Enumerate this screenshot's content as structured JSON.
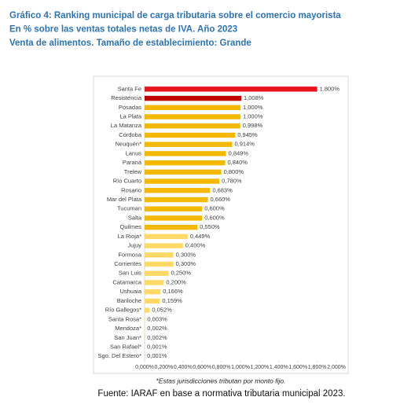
{
  "chart_data": {
    "type": "hbar",
    "title_lines": [
      "Gráfico 4: Ranking municipal de carga tributaria sobre el comercio mayorista",
      "En % sobre las ventas totales netas de IVA. Año 2023",
      "Venta de alimentos. Tamaño de establecimiento: Grande"
    ],
    "categories": [
      "Santa Fe",
      "Resistencia",
      "Posadas",
      "La Plata",
      "La Matanza",
      "Córdoba",
      "Neuquén*",
      "Lanus",
      "Paraná",
      "Trelew",
      "Río Cuarto",
      "Rosario",
      "Mar del Plata",
      "Tucuman",
      "Salta",
      "Quilmes",
      "La Rioja*",
      "Jujuy",
      "Formosa",
      "Corrientes",
      "San Luis",
      "Catamarca",
      "Ushuaia",
      "Bariloche",
      "Río Gallegos*",
      "Santa Rosa*",
      "Mendoza*",
      "San Juan*",
      "San Rafael*",
      "Sgo. Del Estero*"
    ],
    "values": [
      1.8,
      1.008,
      1.0,
      1.0,
      0.998,
      0.945,
      0.914,
      0.849,
      0.84,
      0.8,
      0.78,
      0.683,
      0.66,
      0.6,
      0.6,
      0.55,
      0.449,
      0.4,
      0.3,
      0.3,
      0.25,
      0.2,
      0.166,
      0.159,
      0.052,
      0.003,
      0.002,
      0.002,
      0.001,
      0.001
    ],
    "value_labels": [
      "1,800%",
      "1,008%",
      "1,000%",
      "1,000%",
      "0,998%",
      "0,945%",
      "0,914%",
      "0,849%",
      "0,840%",
      "0,800%",
      "0,780%",
      "0,683%",
      "0,660%",
      "0,600%",
      "0,600%",
      "0,550%",
      "0,449%",
      "0,400%",
      "0,300%",
      "0,300%",
      "0,250%",
      "0,200%",
      "0,166%",
      "0,159%",
      "0,052%",
      "0,003%",
      "0,002%",
      "0,002%",
      "0,001%",
      "0,001%"
    ],
    "colors": [
      "#e8141b",
      "#c00000",
      "#f5b800",
      "#f5b800",
      "#f5b800",
      "#f5b800",
      "#f5b800",
      "#f5b800",
      "#f5b800",
      "#f5b800",
      "#f5b800",
      "#f5b800",
      "#f5b800",
      "#f5b800",
      "#f5b800",
      "#f5b800",
      "#ffd966",
      "#ffd966",
      "#ffd966",
      "#ffd966",
      "#ffd966",
      "#ffd966",
      "#ffd966",
      "#ffd966",
      "#ffd966",
      "#ffd966",
      "#ffd966",
      "#ffd966",
      "#ffd966",
      "#ffd966"
    ],
    "xlim": [
      0,
      2
    ],
    "xticks": [
      {
        "value": 0,
        "label": "0,000%"
      },
      {
        "value": 0.2,
        "label": "0,200%"
      },
      {
        "value": 0.4,
        "label": "0,400%"
      },
      {
        "value": 0.6,
        "label": "0,600%"
      },
      {
        "value": 0.8,
        "label": "0,800%"
      },
      {
        "value": 1.0,
        "label": "1,000%"
      },
      {
        "value": 1.2,
        "label": "1,200%"
      },
      {
        "value": 1.4,
        "label": "1,400%"
      },
      {
        "value": 1.6,
        "label": "1,600%"
      },
      {
        "value": 1.8,
        "label": "1,800%"
      },
      {
        "value": 2.0,
        "label": "2,000%"
      }
    ],
    "note": "*Estas jurisdicciones tributan por monto fijo.",
    "source": "Fuente: IARAF en base a normativa tributaria municipal 2023."
  }
}
